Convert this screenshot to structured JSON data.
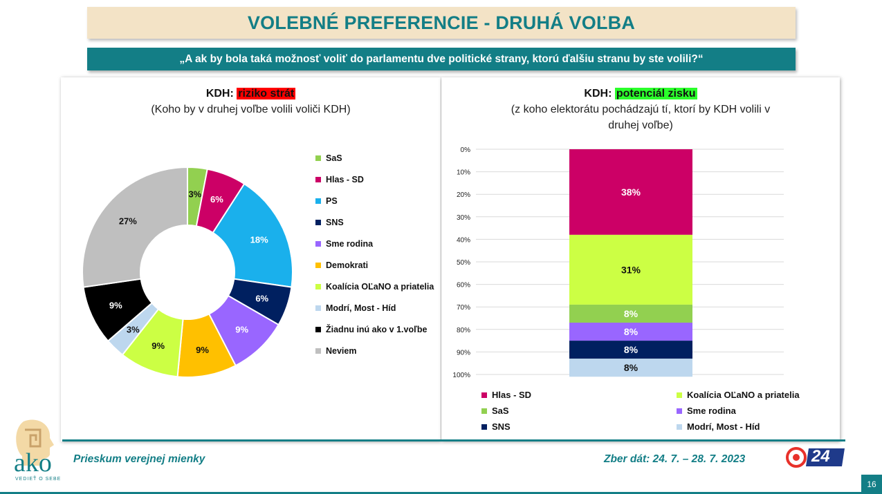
{
  "title": "VOLEBNÉ PREFERENCIE - DRUHÁ VOĽBA",
  "question": "„A ak by bola taká možnosť voliť do parlamentu dve politické strany, ktorú ďalšiu stranu by ste volili?“",
  "left_panel": {
    "title_prefix": "KDH:",
    "title_highlight": "riziko strát",
    "subtitle": "(Koho by v druhej voľbe volili voliči KDH)"
  },
  "right_panel": {
    "title_prefix": "KDH:",
    "title_highlight": "potenciál zisku",
    "subtitle_line1": "(z koho elektorátu pochádzajú tí, ktorí by KDH volili v",
    "subtitle_line2": "druhej voľbe)"
  },
  "footer": {
    "survey": "Prieskum verejnej mienky",
    "dates": "Zber dát: 24. 7. – 28. 7. 2023",
    "page": "16",
    "logo_text": "ako",
    "logo_tagline": "VEDIEŤ O SEBE",
    "logo_24": "24"
  },
  "colors": {
    "teal": "#137e86",
    "SaS": "#92d050",
    "Hlas - SD": "#cc0066",
    "PS": "#1ab0ec",
    "SNS": "#002060",
    "Sme rodina": "#9966ff",
    "Demokrati": "#ffc000",
    "Koalícia OĽaNO a priatelia": "#ccff44",
    "Modrí, Most - Híd": "#bdd7ee",
    "Žiadnu inú ako v 1.voľbe": "#000000",
    "Neviem": "#bfbfbf"
  },
  "chart_data": [
    {
      "type": "pie",
      "variant": "donut",
      "title": "KDH: riziko strát",
      "subtitle": "(Koho by v druhej voľbe volili voliči KDH)",
      "categories": [
        "SaS",
        "Hlas - SD",
        "PS",
        "SNS",
        "Sme rodina",
        "Demokrati",
        "Koalícia OĽaNO a priatelia",
        "Modrí, Most - Híd",
        "Žiadnu inú ako v 1.voľbe",
        "Neviem"
      ],
      "values": [
        3,
        6,
        18,
        6,
        9,
        9,
        9,
        3,
        9,
        27
      ],
      "labels": [
        "3%",
        "6%",
        "18%",
        "6%",
        "9%",
        "9%",
        "9%",
        "3%",
        "9%",
        "27%"
      ],
      "legend": "right"
    },
    {
      "type": "bar",
      "variant": "stacked-100",
      "title": "KDH: potenciál zisku",
      "subtitle": "(z koho elektorátu pochádzajú tí, ktorí by KDH volili v druhej voľbe)",
      "series": [
        {
          "name": "Hlas - SD",
          "values": [
            38
          ],
          "label": "38%"
        },
        {
          "name": "Koalícia OĽaNO a priatelia",
          "values": [
            31
          ],
          "label": "31%"
        },
        {
          "name": "SaS",
          "values": [
            8
          ],
          "label": "8%"
        },
        {
          "name": "Sme rodina",
          "values": [
            8
          ],
          "label": "8%"
        },
        {
          "name": "SNS",
          "values": [
            8
          ],
          "label": "8%"
        },
        {
          "name": "Modrí, Most - Híd",
          "values": [
            8
          ],
          "label": "8%"
        }
      ],
      "yticks": [
        "0%",
        "10%",
        "20%",
        "30%",
        "40%",
        "50%",
        "60%",
        "70%",
        "80%",
        "90%",
        "100%"
      ],
      "ylim": [
        0,
        100
      ],
      "y_inverted": true,
      "grid": true,
      "legend_order": [
        "Hlas - SD",
        "Koalícia OĽaNO a priatelia",
        "SaS",
        "Sme rodina",
        "SNS",
        "Modrí, Most - Híd"
      ],
      "legend": "bottom"
    }
  ]
}
